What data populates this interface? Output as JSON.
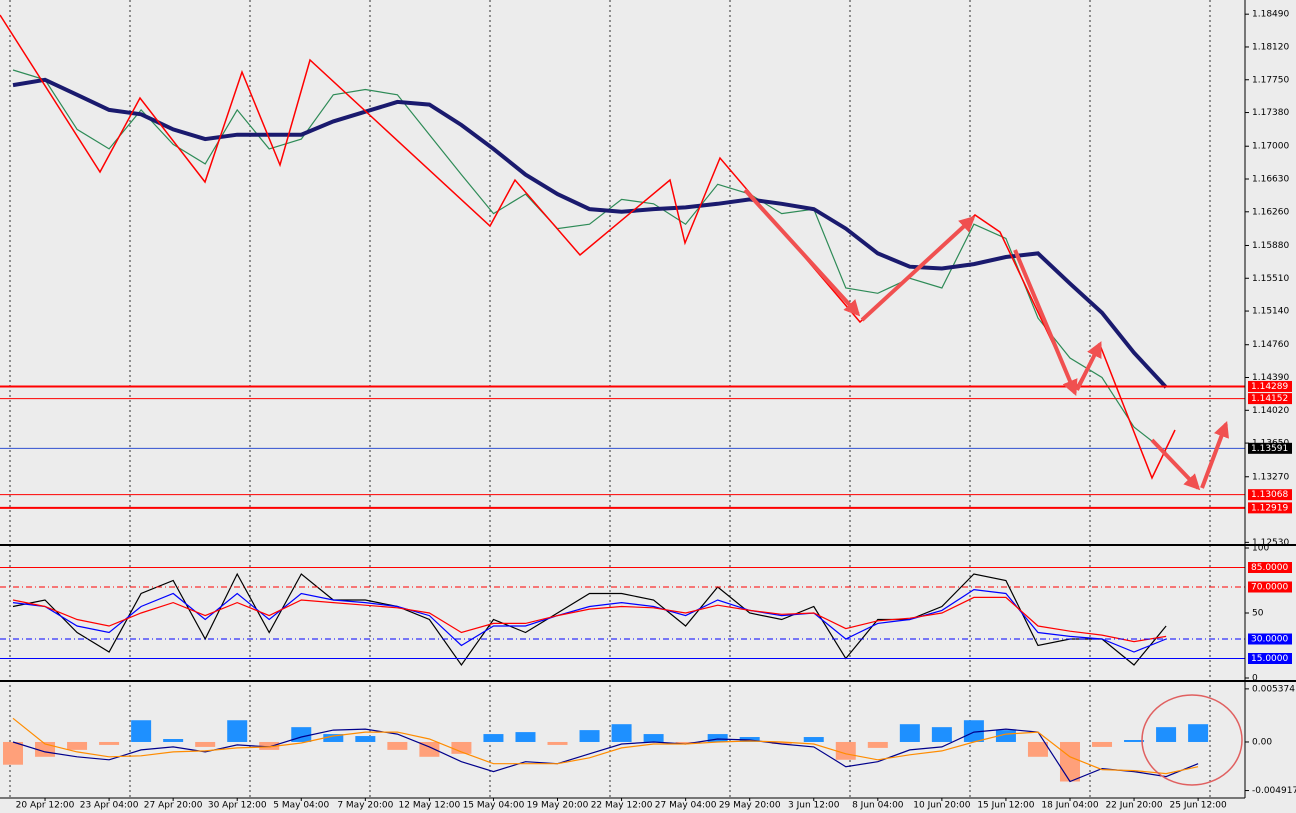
{
  "chart_data": [
    {
      "type": "line",
      "ylim": [
        1.125,
        1.1865
      ],
      "yticks": [
        {
          "value": 1.1849,
          "label": "1.18490"
        },
        {
          "value": 1.1812,
          "label": "1.18120"
        },
        {
          "value": 1.1775,
          "label": "1.17750"
        },
        {
          "value": 1.1738,
          "label": "1.17380"
        },
        {
          "value": 1.17,
          "label": "1.17000"
        },
        {
          "value": 1.1663,
          "label": "1.16630"
        },
        {
          "value": 1.1626,
          "label": "1.16260"
        },
        {
          "value": 1.1588,
          "label": "1.15880"
        },
        {
          "value": 1.1551,
          "label": "1.15510"
        },
        {
          "value": 1.1514,
          "label": "1.15140"
        },
        {
          "value": 1.1476,
          "label": "1.14760"
        },
        {
          "value": 1.1439,
          "label": "1.14390"
        },
        {
          "value": 1.1402,
          "label": "1.14020"
        },
        {
          "value": 1.1365,
          "label": "1.13650"
        },
        {
          "value": 1.1327,
          "label": "1.13270"
        },
        {
          "value": 1.1253,
          "label": "1.12530"
        }
      ],
      "series": [
        {
          "color": "#2e8b57",
          "values": [
            1.1786,
            1.1775,
            1.1719,
            1.1697,
            1.1741,
            1.1702,
            1.168,
            1.1741,
            1.1697,
            1.1708,
            1.1758,
            1.1764,
            1.1758,
            1.1713,
            1.1668,
            1.1624,
            1.1646,
            1.1607,
            1.1612,
            1.164,
            1.1635,
            1.1612,
            1.1657,
            1.1646,
            1.1624,
            1.1629,
            1.154,
            1.1534,
            1.1551,
            1.154,
            1.1612,
            1.1596,
            1.1506,
            1.1461,
            1.1439,
            1.1383,
            1.1355,
            null
          ]
        },
        {
          "color": "#1a1a6e",
          "values": [
            1.1769,
            1.1775,
            1.1758,
            1.1741,
            1.1736,
            1.1719,
            1.1708,
            1.1713,
            1.1713,
            1.1713,
            1.1728,
            1.1739,
            1.175,
            1.1747,
            1.1724,
            1.1697,
            1.1668,
            1.1646,
            1.1629,
            1.1626,
            1.1629,
            1.1631,
            1.1635,
            1.164,
            1.1635,
            1.1629,
            1.1607,
            1.1579,
            1.1564,
            1.1562,
            1.1567,
            1.1575,
            1.1579,
            1.1545,
            1.1512,
            1.1467,
            1.1428,
            null
          ]
        }
      ],
      "hlines": [
        {
          "value": 1.14289,
          "color": "#ff0000",
          "thick": true
        },
        {
          "value": 1.14152,
          "color": "#ff0000",
          "thick": false
        },
        {
          "value": 1.13591,
          "color": "#3050d0",
          "box": "#000000",
          "thick": false
        },
        {
          "value": 1.13068,
          "color": "#ff0000",
          "thick": false
        },
        {
          "value": 1.12919,
          "color": "#ff0000",
          "thick": true
        }
      ]
    },
    {
      "type": "line",
      "ylim": [
        0,
        100
      ],
      "yticks": [
        100,
        50,
        0
      ],
      "hlines": [
        {
          "value": 85,
          "label": "85.0000",
          "color": "#ff0000",
          "dash": false
        },
        {
          "value": 70,
          "label": "70.0000",
          "color": "#ff0000",
          "dash": true
        },
        {
          "value": 30,
          "label": "30.0000",
          "color": "#0000ff",
          "dash": true
        },
        {
          "value": 15,
          "label": "15.0000",
          "color": "#0000ff",
          "dash": false
        }
      ],
      "series": [
        {
          "color": "#000000",
          "values": [
            55,
            60,
            35,
            20,
            65,
            75,
            30,
            80,
            35,
            80,
            60,
            60,
            55,
            45,
            10,
            45,
            35,
            50,
            65,
            65,
            60,
            40,
            70,
            50,
            45,
            55,
            15,
            45,
            45,
            55,
            80,
            75,
            25,
            30,
            30,
            10,
            40,
            null
          ]
        },
        {
          "color": "#0000ff",
          "values": [
            58,
            55,
            40,
            35,
            55,
            65,
            45,
            65,
            45,
            65,
            60,
            58,
            55,
            48,
            25,
            40,
            40,
            48,
            55,
            58,
            55,
            48,
            60,
            52,
            48,
            50,
            30,
            42,
            45,
            52,
            68,
            65,
            35,
            32,
            30,
            20,
            30,
            null
          ]
        },
        {
          "color": "#ff0000",
          "values": [
            60,
            55,
            45,
            40,
            50,
            58,
            48,
            58,
            48,
            60,
            58,
            56,
            54,
            50,
            35,
            42,
            42,
            48,
            53,
            55,
            54,
            50,
            56,
            52,
            49,
            50,
            38,
            44,
            46,
            50,
            62,
            62,
            40,
            36,
            33,
            28,
            32,
            null
          ]
        }
      ]
    },
    {
      "type": "macd",
      "ylim": [
        -0.00557,
        0.00597
      ],
      "yticks": [
        0.0053741,
        {
          "value": 0,
          "label": "0.00"
        },
        -0.004917
      ],
      "categories": [
        null,
        "20 Apr 12:00",
        null,
        "23 Apr 04:00",
        null,
        "27 Apr 20:00",
        null,
        "30 Apr 12:00",
        null,
        "5 May 04:00",
        null,
        "7 May 20:00",
        null,
        "12 May 12:00",
        null,
        "15 May 04:00",
        null,
        "19 May 20:00",
        null,
        "22 May 12:00",
        null,
        "27 May 04:00",
        null,
        "29 May 20:00",
        null,
        "3 Jun 12:00",
        null,
        "8 Jun 04:00",
        null,
        "10 Jun 20:00",
        null,
        "15 Jun 12:00",
        null,
        "18 Jun 04:00",
        null,
        "22 Jun 20:00",
        null,
        "25 Jun 12:00"
      ],
      "histogram": {
        "positive": "#1e90ff",
        "negative": "#ffa07a",
        "values": [
          -0.0023,
          -0.0015,
          -0.0008,
          -0.0003,
          0.0022,
          0.0003,
          -0.0005,
          0.0022,
          -0.0008,
          0.0015,
          0.0008,
          0.0006,
          -0.0008,
          -0.0015,
          -0.0012,
          0.0008,
          0.001,
          -0.0003,
          0.0012,
          0.0018,
          0.0008,
          -0.0002,
          0.0008,
          0.0005,
          -0.0002,
          0.0005,
          -0.0018,
          -0.0006,
          0.0018,
          0.0015,
          0.0022,
          0.0012,
          -0.0015,
          -0.004,
          -0.0005,
          0.0002,
          0.0015,
          0.0018
        ]
      },
      "series": [
        {
          "color": "#00008b",
          "values": [
            0,
            -0.001,
            -0.0015,
            -0.0018,
            -0.0008,
            -0.0005,
            -0.001,
            -0.0003,
            -0.0005,
            0.0005,
            0.0012,
            0.0013,
            0.0008,
            -0.0005,
            -0.002,
            -0.003,
            -0.002,
            -0.0022,
            -0.0012,
            -0.0002,
            0,
            -0.0002,
            0.0003,
            0.0002,
            -0.0002,
            -0.0005,
            -0.0025,
            -0.002,
            -0.0008,
            -0.0005,
            0.001,
            0.0013,
            0.001,
            -0.004,
            -0.0027,
            -0.003,
            -0.0035,
            -0.0022
          ]
        },
        {
          "color": "#ff8c00",
          "values": [
            0.0024,
            -0.0002,
            -0.001,
            -0.0015,
            -0.0014,
            -0.001,
            -0.0009,
            -0.0006,
            -0.0005,
            -0.0001,
            0.0006,
            0.001,
            0.001,
            0.0003,
            -0.001,
            -0.0022,
            -0.0022,
            -0.0022,
            -0.0016,
            -0.0006,
            -0.0002,
            -0.0002,
            0,
            0.0001,
            0,
            -0.0002,
            -0.0012,
            -0.0018,
            -0.0013,
            -0.0009,
            0,
            0.0008,
            0.001,
            -0.0015,
            -0.0028,
            -0.0029,
            -0.0032,
            -0.0025
          ]
        }
      ]
    }
  ]
}
